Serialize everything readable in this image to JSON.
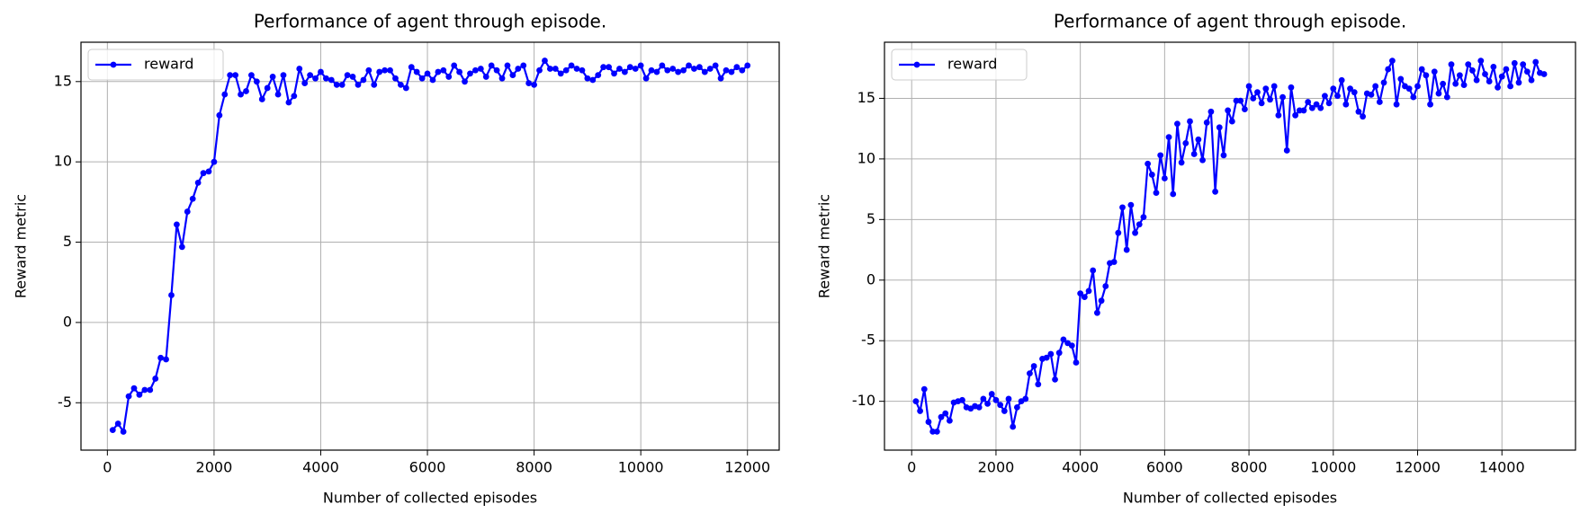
{
  "chart_data": [
    {
      "type": "line",
      "title": "Performance of agent through episode.",
      "xlabel": "Number of collected episodes",
      "ylabel": "Reward metric",
      "x": [
        100,
        200,
        300,
        400,
        500,
        600,
        700,
        800,
        900,
        1000,
        1100,
        1200,
        1300,
        1400,
        1500,
        1600,
        1700,
        1800,
        1900,
        2000,
        2100,
        2200,
        2300,
        2400,
        2500,
        2600,
        2700,
        2800,
        2900,
        3000,
        3100,
        3200,
        3300,
        3400,
        3500,
        3600,
        3700,
        3800,
        3900,
        4000,
        4100,
        4200,
        4300,
        4400,
        4500,
        4600,
        4700,
        4800,
        4900,
        5000,
        5100,
        5200,
        5300,
        5400,
        5500,
        5600,
        5700,
        5800,
        5900,
        6000,
        6100,
        6200,
        6300,
        6400,
        6500,
        6600,
        6700,
        6800,
        6900,
        7000,
        7100,
        7200,
        7300,
        7400,
        7500,
        7600,
        7700,
        7800,
        7900,
        8000,
        8100,
        8200,
        8300,
        8400,
        8500,
        8600,
        8700,
        8800,
        8900,
        9000,
        9100,
        9200,
        9300,
        9400,
        9500,
        9600,
        9700,
        9800,
        9900,
        10000,
        10100,
        10200,
        10300,
        10400,
        10500,
        10600,
        10700,
        10800,
        10900,
        11000,
        11100,
        11200,
        11300,
        11400,
        11500,
        11600,
        11700,
        11800,
        11900,
        12000
      ],
      "series": [
        {
          "name": "reward",
          "color": "#0000ff",
          "values": [
            -6.7,
            -6.3,
            -6.8,
            -4.6,
            -4.1,
            -4.5,
            -4.2,
            -4.2,
            -3.5,
            -2.2,
            -2.3,
            1.7,
            6.1,
            4.7,
            6.9,
            7.7,
            8.7,
            9.3,
            9.4,
            10.0,
            12.9,
            14.2,
            15.4,
            15.4,
            14.2,
            14.4,
            15.4,
            15.0,
            13.9,
            14.6,
            15.3,
            14.2,
            15.4,
            13.7,
            14.1,
            15.8,
            14.9,
            15.4,
            15.2,
            15.6,
            15.2,
            15.1,
            14.8,
            14.8,
            15.4,
            15.3,
            14.8,
            15.1,
            15.7,
            14.8,
            15.6,
            15.7,
            15.7,
            15.2,
            14.8,
            14.6,
            15.9,
            15.6,
            15.2,
            15.5,
            15.1,
            15.6,
            15.7,
            15.3,
            16.0,
            15.6,
            15.0,
            15.5,
            15.7,
            15.8,
            15.3,
            16.0,
            15.7,
            15.2,
            16.0,
            15.4,
            15.8,
            16.0,
            14.9,
            14.8,
            15.7,
            16.3,
            15.8,
            15.8,
            15.5,
            15.7,
            16.0,
            15.8,
            15.7,
            15.2,
            15.1,
            15.4,
            15.9,
            15.9,
            15.5,
            15.8,
            15.6,
            15.9,
            15.8,
            16.0,
            15.2,
            15.7,
            15.6,
            16.0,
            15.7,
            15.8,
            15.6,
            15.7,
            16.0,
            15.8,
            15.9,
            15.6,
            15.8,
            16.0,
            15.2,
            15.7,
            15.6,
            15.9,
            15.7,
            16.0
          ]
        }
      ],
      "xlim": [
        -495,
        12595
      ],
      "ylim": [
        -7.95,
        17.45
      ],
      "xticks": [
        0,
        2000,
        4000,
        6000,
        8000,
        10000,
        12000
      ],
      "yticks": [
        -5,
        0,
        5,
        10,
        15
      ],
      "grid": true,
      "legend": "upper left"
    },
    {
      "type": "line",
      "title": "Performance of agent through episode.",
      "xlabel": "Number of collected episodes",
      "ylabel": "Reward metric",
      "x": [
        100,
        200,
        300,
        400,
        500,
        600,
        700,
        800,
        900,
        1000,
        1100,
        1200,
        1300,
        1400,
        1500,
        1600,
        1700,
        1800,
        1900,
        2000,
        2100,
        2200,
        2300,
        2400,
        2500,
        2600,
        2700,
        2800,
        2900,
        3000,
        3100,
        3200,
        3300,
        3400,
        3500,
        3600,
        3700,
        3800,
        3900,
        4000,
        4100,
        4200,
        4300,
        4400,
        4500,
        4600,
        4700,
        4800,
        4900,
        5000,
        5100,
        5200,
        5300,
        5400,
        5500,
        5600,
        5700,
        5800,
        5900,
        6000,
        6100,
        6200,
        6300,
        6400,
        6500,
        6600,
        6700,
        6800,
        6900,
        7000,
        7100,
        7200,
        7300,
        7400,
        7500,
        7600,
        7700,
        7800,
        7900,
        8000,
        8100,
        8200,
        8300,
        8400,
        8500,
        8600,
        8700,
        8800,
        8900,
        9000,
        9100,
        9200,
        9300,
        9400,
        9500,
        9600,
        9700,
        9800,
        9900,
        10000,
        10100,
        10200,
        10300,
        10400,
        10500,
        10600,
        10700,
        10800,
        10900,
        11000,
        11100,
        11200,
        11300,
        11400,
        11500,
        11600,
        11700,
        11800,
        11900,
        12000,
        12100,
        12200,
        12300,
        12400,
        12500,
        12600,
        12700,
        12800,
        12900,
        13000,
        13100,
        13200,
        13300,
        13400,
        13500,
        13600,
        13700,
        13800,
        13900,
        14000,
        14100,
        14200,
        14300,
        14400,
        14500,
        14600,
        14700,
        14800,
        14900,
        15000
      ],
      "series": [
        {
          "name": "reward",
          "color": "#0000ff",
          "values": [
            -10.0,
            -10.8,
            -9.0,
            -11.7,
            -12.5,
            -12.5,
            -11.3,
            -11.0,
            -11.6,
            -10.1,
            -10.0,
            -9.9,
            -10.5,
            -10.6,
            -10.4,
            -10.5,
            -9.8,
            -10.2,
            -9.4,
            -9.9,
            -10.3,
            -10.8,
            -9.8,
            -12.1,
            -10.5,
            -10.0,
            -9.8,
            -7.7,
            -7.1,
            -8.6,
            -6.5,
            -6.4,
            -6.1,
            -8.2,
            -6.0,
            -4.9,
            -5.2,
            -5.4,
            -6.8,
            -1.1,
            -1.4,
            -0.9,
            0.8,
            -2.7,
            -1.7,
            -0.5,
            1.4,
            1.5,
            3.9,
            6.0,
            2.5,
            6.2,
            3.9,
            4.6,
            5.2,
            9.6,
            8.7,
            7.2,
            10.3,
            8.4,
            11.8,
            7.1,
            12.9,
            9.7,
            11.3,
            13.1,
            10.4,
            11.6,
            9.9,
            13.0,
            13.9,
            7.3,
            12.6,
            10.3,
            14.0,
            13.1,
            14.8,
            14.8,
            14.1,
            16.0,
            15.0,
            15.5,
            14.6,
            15.8,
            14.9,
            16.0,
            13.6,
            15.1,
            10.7,
            15.9,
            13.6,
            14.0,
            14.0,
            14.7,
            14.2,
            14.5,
            14.2,
            15.2,
            14.6,
            15.8,
            15.2,
            16.5,
            14.5,
            15.8,
            15.5,
            13.9,
            13.5,
            15.4,
            15.3,
            16.0,
            14.7,
            16.3,
            17.4,
            18.1,
            14.5,
            16.6,
            16.0,
            15.8,
            15.1,
            16.0,
            17.4,
            16.9,
            14.5,
            17.2,
            15.4,
            16.2,
            15.1,
            17.8,
            16.2,
            16.9,
            16.1,
            17.8,
            17.3,
            16.5,
            18.1,
            17.0,
            16.4,
            17.6,
            15.9,
            16.8,
            17.4,
            16.0,
            17.9,
            16.3,
            17.8,
            17.2,
            16.5,
            18.0,
            17.1,
            17.0
          ]
        }
      ],
      "xlim": [
        -645,
        15745
      ],
      "ylim": [
        -14.03,
        19.63
      ],
      "xticks": [
        0,
        2000,
        4000,
        6000,
        8000,
        10000,
        12000,
        14000
      ],
      "yticks": [
        -10,
        -5,
        0,
        5,
        10,
        15
      ],
      "grid": true,
      "legend": "upper left"
    }
  ]
}
